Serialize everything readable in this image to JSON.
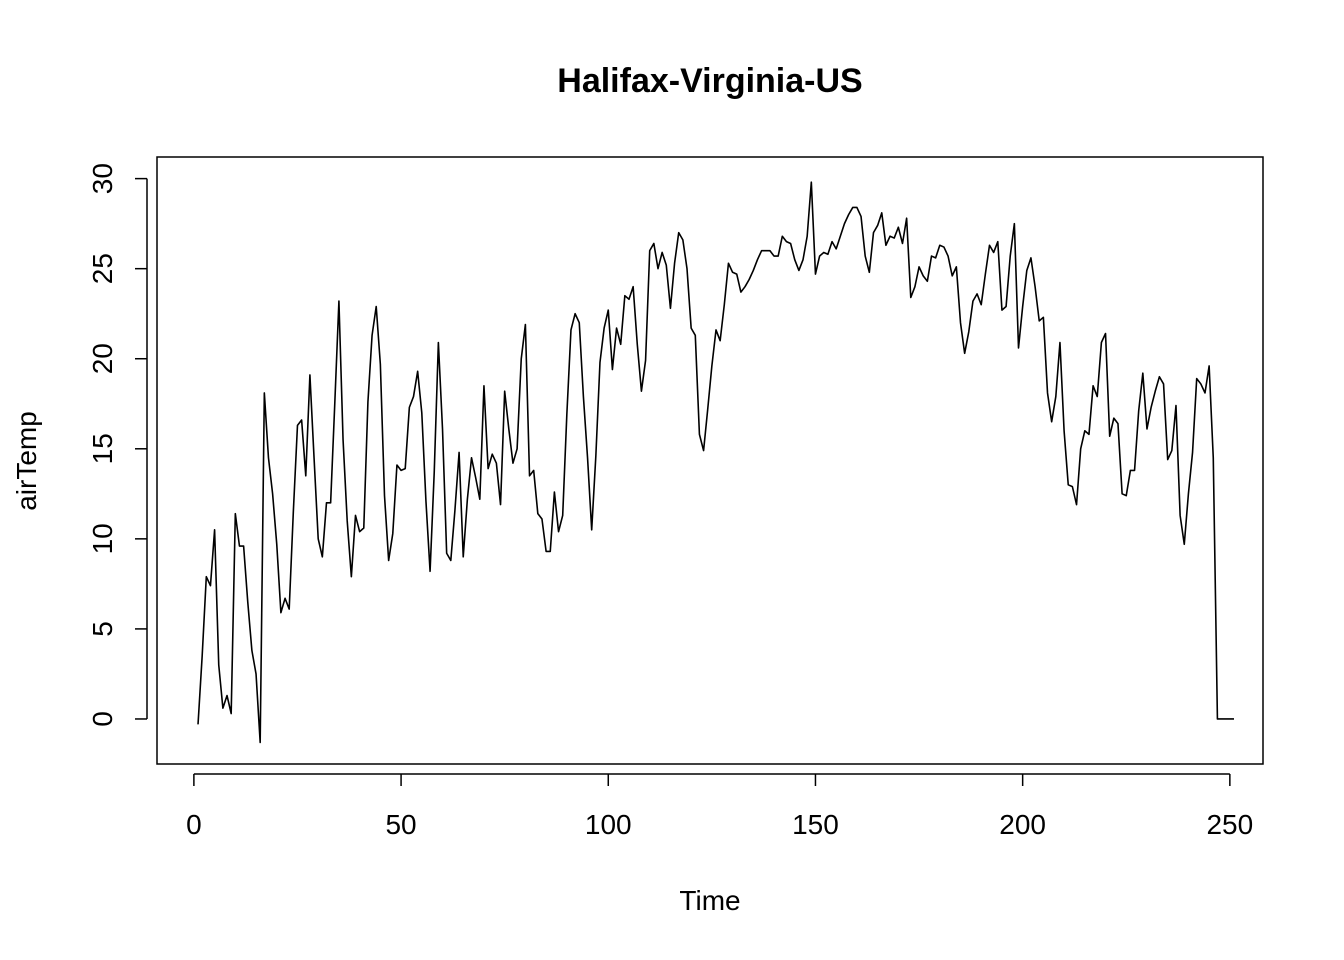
{
  "chart_data": {
    "type": "line",
    "title": "Halifax-Virginia-US",
    "xlabel": "Time",
    "ylabel": "airTemp",
    "xlim": [
      -8.9,
      258
    ],
    "ylim": [
      -2.5,
      31.2
    ],
    "x_ticks": [
      0,
      50,
      100,
      150,
      200,
      250
    ],
    "y_ticks": [
      0,
      5,
      10,
      15,
      20,
      25,
      30
    ],
    "grid": false,
    "legend": "none",
    "line_color": "#000000",
    "series": [
      {
        "x_start": 1,
        "values": [
          -0.3,
          3.5,
          7.9,
          7.4,
          10.5,
          3.0,
          0.6,
          1.3,
          0.3,
          11.4,
          9.6,
          9.6,
          6.5,
          3.8,
          2.5,
          -1.3,
          18.1,
          14.5,
          12.5,
          9.7,
          5.9,
          6.7,
          6.1,
          11.5,
          16.3,
          16.6,
          13.5,
          19.1,
          14.5,
          10.0,
          9.0,
          12.0,
          12.0,
          17.5,
          23.2,
          15.5,
          11.0,
          7.9,
          11.3,
          10.4,
          10.6,
          17.6,
          21.3,
          22.9,
          19.7,
          12.4,
          8.8,
          10.3,
          14.1,
          13.8,
          13.9,
          17.3,
          17.9,
          19.3,
          17.0,
          12.1,
          8.2,
          13.7,
          20.9,
          16.1,
          9.2,
          8.8,
          11.6,
          14.8,
          9.0,
          12.2,
          14.5,
          13.4,
          12.2,
          18.5,
          13.9,
          14.7,
          14.2,
          11.9,
          18.2,
          16.1,
          14.2,
          15.0,
          20.0,
          21.9,
          13.5,
          13.8,
          11.4,
          11.1,
          9.3,
          9.3,
          12.6,
          10.4,
          11.3,
          16.9,
          21.6,
          22.5,
          22.0,
          17.9,
          14.5,
          10.5,
          14.6,
          19.8,
          21.7,
          22.7,
          19.4,
          21.7,
          20.8,
          23.5,
          23.3,
          24.0,
          20.8,
          18.2,
          19.9,
          26.0,
          26.4,
          25.0,
          25.9,
          25.2,
          22.8,
          25.3,
          27.0,
          26.6,
          25.0,
          21.7,
          21.3,
          15.8,
          14.9,
          17.2,
          19.6,
          21.6,
          21.0,
          23.0,
          25.3,
          24.8,
          24.7,
          23.7,
          24.0,
          24.4,
          24.9,
          25.5,
          26.0,
          26.0,
          26.0,
          25.7,
          25.7,
          26.8,
          26.5,
          26.4,
          25.5,
          24.9,
          25.5,
          26.8,
          29.8,
          24.7,
          25.7,
          25.9,
          25.8,
          26.5,
          26.1,
          26.8,
          27.5,
          28.0,
          28.4,
          28.4,
          27.9,
          25.7,
          24.8,
          27.0,
          27.4,
          28.1,
          26.3,
          26.8,
          26.7,
          27.3,
          26.4,
          27.8,
          23.4,
          24.0,
          25.1,
          24.6,
          24.3,
          25.7,
          25.6,
          26.3,
          26.2,
          25.7,
          24.6,
          25.1,
          22.0,
          20.3,
          21.5,
          23.2,
          23.6,
          23.0,
          24.7,
          26.3,
          25.9,
          26.5,
          22.7,
          22.9,
          25.7,
          27.5,
          20.6,
          22.9,
          24.9,
          25.6,
          24.0,
          22.1,
          22.3,
          18.1,
          16.5,
          17.9,
          20.9,
          16.0,
          13.0,
          12.9,
          11.9,
          15.0,
          16.0,
          15.8,
          18.5,
          17.9,
          20.9,
          21.4,
          15.7,
          16.7,
          16.4,
          12.5,
          12.4,
          13.8,
          13.8,
          17.1,
          19.2,
          16.1,
          17.3,
          18.2,
          19.0,
          18.6,
          14.4,
          14.9,
          17.4,
          11.3,
          9.7,
          12.5,
          14.8,
          18.9,
          18.6,
          18.1,
          19.6,
          14.5,
          0.0,
          0.0,
          0.0,
          0.0,
          0.0
        ]
      }
    ]
  }
}
